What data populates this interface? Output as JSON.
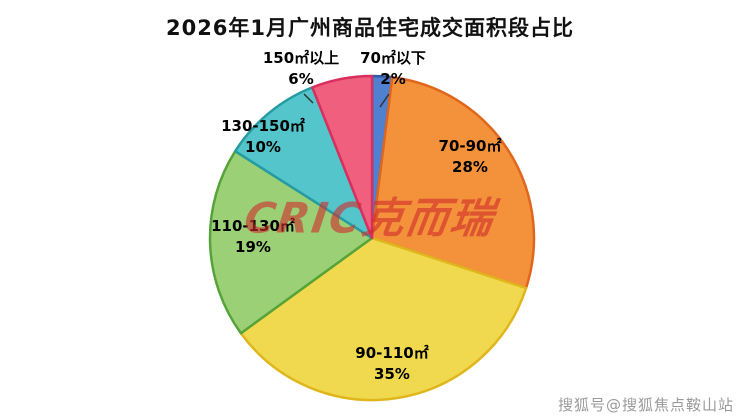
{
  "title": "2026年1月广州商品住宅成交面积段占比",
  "watermarks": {
    "center": "CRIC克而瑞",
    "corner": "搜狐号@搜狐焦点鞍山站"
  },
  "chart_data": {
    "type": "pie",
    "title": "2026年1月广州商品住宅成交面积段占比",
    "start_angle_deg": -90,
    "direction": "clockwise",
    "unit": "%",
    "slices": [
      {
        "key": "under-70",
        "label": "70㎡以下",
        "value": 2,
        "pct_label": "2%",
        "color": "#5080d0",
        "border": "#33599f"
      },
      {
        "key": "70-90",
        "label": "70-90㎡",
        "value": 28,
        "pct_label": "28%",
        "color": "#f3923a",
        "border": "#e0661e"
      },
      {
        "key": "90-110",
        "label": "90-110㎡",
        "value": 35,
        "pct_label": "35%",
        "color": "#f1d94f",
        "border": "#dfb61b"
      },
      {
        "key": "110-130",
        "label": "110-130㎡",
        "value": 19,
        "pct_label": "19%",
        "color": "#9bd077",
        "border": "#55a339"
      },
      {
        "key": "130-150",
        "label": "130-150㎡",
        "value": 10,
        "pct_label": "10%",
        "color": "#54c5ca",
        "border": "#259ba3"
      },
      {
        "key": "over-150",
        "label": "150㎡以上",
        "value": 6,
        "pct_label": "6%",
        "color": "#f0607e",
        "border": "#d92f5e"
      }
    ]
  }
}
